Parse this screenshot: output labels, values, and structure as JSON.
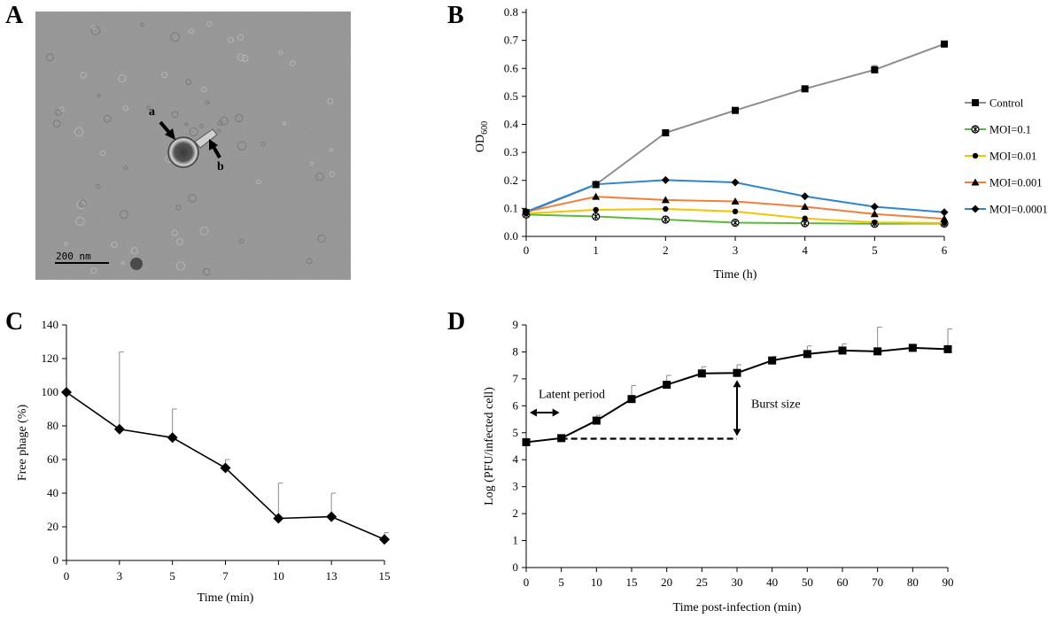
{
  "figure": {
    "panel_letters": [
      "A",
      "B",
      "C",
      "D"
    ],
    "micrograph": {
      "arrow_labels": [
        "a",
        "b"
      ],
      "scale_bar_label": "200 nm",
      "background_color": "#9e9e9e"
    }
  },
  "colors": {
    "control": "#8c8c8c",
    "moi_0_1": "#5cb83c",
    "moi_0_01": "#f5c400",
    "moi_0_001": "#f07f3a",
    "moi_0_0001": "#2e86c9",
    "black": "#000000",
    "error_bar": "#9a9a9a"
  },
  "chart_data": [
    {
      "id": "B",
      "type": "line",
      "xlabel": "Time (h)",
      "ylabel_main": "OD",
      "ylabel_sub": "600",
      "x": [
        0,
        1,
        2,
        3,
        4,
        5,
        6
      ],
      "xlim": [
        0,
        6
      ],
      "ylim": [
        0,
        0.8
      ],
      "yticks": [
        0.0,
        0.1,
        0.2,
        0.3,
        0.4,
        0.5,
        0.6,
        0.7,
        0.8
      ],
      "ytick_labels": [
        "0.0",
        "0.1",
        "0.2",
        "0.3",
        "0.4",
        "0.5",
        "0.6",
        "0.7",
        "0.8"
      ],
      "xtick_labels": [
        "0",
        "1",
        "2",
        "3",
        "4",
        "5",
        "6"
      ],
      "legend_position": "right",
      "series": [
        {
          "name": "Control",
          "color_key": "control",
          "marker": "square",
          "values": [
            0.085,
            0.185,
            0.37,
            0.45,
            0.527,
            0.595,
            0.687
          ],
          "errors": [
            0,
            0,
            0,
            0,
            0.01,
            0.015,
            0.01
          ]
        },
        {
          "name": "MOI=0.1",
          "color_key": "moi_0_1",
          "marker": "starcircle",
          "values": [
            0.078,
            0.071,
            0.06,
            0.049,
            0.047,
            0.045,
            0.046
          ],
          "errors": [
            0,
            0,
            0,
            0,
            0,
            0,
            0
          ]
        },
        {
          "name": "MOI=0.01",
          "color_key": "moi_0_01",
          "marker": "circle",
          "values": [
            0.082,
            0.095,
            0.098,
            0.089,
            0.064,
            0.05,
            0.048
          ],
          "errors": [
            0,
            0,
            0,
            0,
            0,
            0,
            0
          ]
        },
        {
          "name": "MOI=0.001",
          "color_key": "moi_0_001",
          "marker": "triangle",
          "values": [
            0.088,
            0.142,
            0.13,
            0.125,
            0.106,
            0.08,
            0.063
          ],
          "errors": [
            0,
            0,
            0,
            0,
            0,
            0,
            0
          ]
        },
        {
          "name": "MOI=0.0001",
          "color_key": "moi_0_0001",
          "marker": "diamond",
          "values": [
            0.088,
            0.186,
            0.201,
            0.193,
            0.143,
            0.106,
            0.086
          ],
          "errors": [
            0,
            0,
            0,
            0,
            0,
            0,
            0
          ]
        }
      ]
    },
    {
      "id": "C",
      "type": "line",
      "xlabel": "Time (min)",
      "ylabel": "Free phage (%)",
      "categories": [
        "0",
        "3",
        "5",
        "7",
        "10",
        "13",
        "15"
      ],
      "ylim": [
        0,
        140
      ],
      "yticks": [
        0,
        20,
        40,
        60,
        80,
        100,
        120,
        140
      ],
      "series": [
        {
          "name": "Free phage",
          "marker": "diamond",
          "values": [
            100,
            78,
            73,
            55,
            25,
            26,
            12.5
          ],
          "errors": [
            0,
            46,
            17,
            5,
            21,
            14,
            4
          ]
        }
      ]
    },
    {
      "id": "D",
      "type": "line",
      "xlabel": "Time post-infection (min)",
      "ylabel": "Log (PFU/infected cell)",
      "categories": [
        "0",
        "5",
        "10",
        "15",
        "20",
        "25",
        "30",
        "40",
        "50",
        "60",
        "70",
        "80",
        "90"
      ],
      "ylim": [
        0,
        9
      ],
      "yticks": [
        0,
        1,
        2,
        3,
        4,
        5,
        6,
        7,
        8,
        9
      ],
      "series": [
        {
          "name": "Log PFU",
          "marker": "square",
          "values": [
            4.65,
            4.8,
            5.45,
            6.25,
            6.78,
            7.2,
            7.22,
            7.68,
            7.92,
            8.05,
            8.02,
            8.15,
            8.1
          ],
          "errors": [
            0,
            0,
            0.2,
            0.5,
            0.35,
            0.25,
            0.3,
            0.15,
            0.3,
            0.25,
            0.9,
            0.1,
            0.75
          ]
        }
      ],
      "annotations": {
        "latent_period": "Latent period",
        "burst_size": "Burst size",
        "baseline_value": 4.78,
        "burst_top_value": 7.22,
        "burst_x_category": "30"
      }
    }
  ]
}
